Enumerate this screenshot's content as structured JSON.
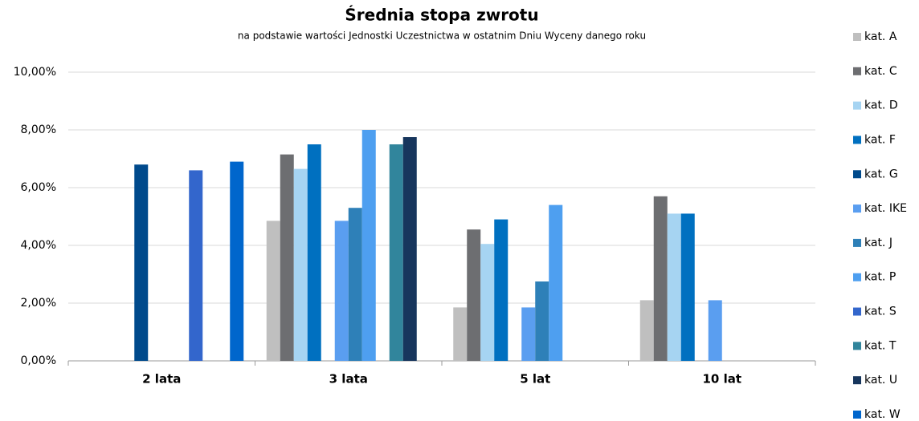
{
  "chart_data": {
    "type": "bar",
    "title": "Średnia stopa zwrotu",
    "subtitle": "na podstawie wartości Jednostki Uczestnictwa w ostatnim Dniu Wyceny danego roku",
    "categories": [
      "2 lata",
      "3 lata",
      "5 lat",
      "10 lat"
    ],
    "series": [
      {
        "name": "kat. A",
        "color": "#bfbfbf",
        "values": [
          null,
          4.85,
          1.85,
          2.1
        ]
      },
      {
        "name": "kat. C",
        "color": "#6d6e71",
        "values": [
          null,
          7.15,
          4.55,
          5.7
        ]
      },
      {
        "name": "kat. D",
        "color": "#a6d4f2",
        "values": [
          null,
          6.65,
          4.05,
          5.1
        ]
      },
      {
        "name": "kat. F",
        "color": "#0070c0",
        "values": [
          null,
          7.5,
          4.9,
          5.1
        ]
      },
      {
        "name": "kat. G",
        "color": "#004a8c",
        "values": [
          6.8,
          null,
          null,
          null
        ]
      },
      {
        "name": "kat. IKE",
        "color": "#5a9ef0",
        "values": [
          null,
          4.85,
          1.85,
          2.1
        ]
      },
      {
        "name": "kat. J",
        "color": "#2e80b8",
        "values": [
          null,
          5.3,
          2.75,
          null
        ]
      },
      {
        "name": "kat. P",
        "color": "#4e9ff0",
        "values": [
          null,
          8.0,
          5.4,
          null
        ]
      },
      {
        "name": "kat. S",
        "color": "#3366cc",
        "values": [
          6.6,
          null,
          null,
          null
        ]
      },
      {
        "name": "kat. T",
        "color": "#31859c",
        "values": [
          null,
          7.5,
          null,
          null
        ]
      },
      {
        "name": "kat. U",
        "color": "#17365d",
        "values": [
          null,
          7.75,
          null,
          null
        ]
      },
      {
        "name": "kat. W",
        "color": "#0066cc",
        "values": [
          6.9,
          null,
          null,
          null
        ]
      }
    ],
    "ylim": [
      0,
      10
    ],
    "yticks": [
      {
        "value": 0,
        "label": "0,00%"
      },
      {
        "value": 2,
        "label": "2,00%"
      },
      {
        "value": 4,
        "label": "4,00%"
      },
      {
        "value": 6,
        "label": "6,00%"
      },
      {
        "value": 8,
        "label": "8,00%"
      },
      {
        "value": 10,
        "label": "10,00%"
      }
    ],
    "grid": true,
    "legend": "right"
  }
}
